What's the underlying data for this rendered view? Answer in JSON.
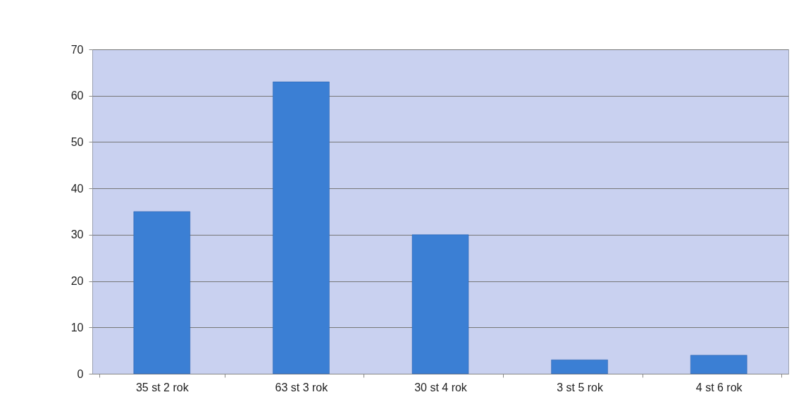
{
  "chart_data": {
    "type": "bar",
    "categories": [
      "35 st 2 rok",
      "63 st 3 rok",
      "30 st 4 rok",
      "3 st 5 rok",
      "4 st 6 rok"
    ],
    "values": [
      35,
      63,
      30,
      3,
      4
    ],
    "color": "#3b7fd4",
    "ylim": [
      0,
      70
    ],
    "yticks": [
      0,
      10,
      20,
      30,
      40,
      50,
      60,
      70
    ],
    "grid": "y"
  }
}
